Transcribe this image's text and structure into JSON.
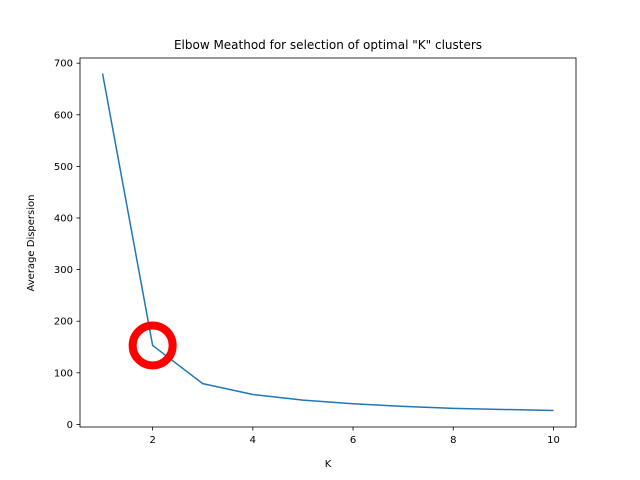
{
  "chart_data": {
    "type": "line",
    "title": "Elbow Meathod for selection of optimal \"K\" clusters",
    "xlabel": "K",
    "ylabel": "Average Dispersion",
    "x": [
      1,
      2,
      3,
      4,
      5,
      6,
      7,
      8,
      9,
      10
    ],
    "series": [
      {
        "values": [
          680,
          153,
          79,
          58,
          47,
          40,
          35,
          31,
          29,
          27
        ]
      }
    ],
    "xlim": [
      0.55,
      10.45
    ],
    "ylim": [
      -5,
      710
    ],
    "xticks": [
      "2",
      "4",
      "6",
      "8",
      "10"
    ],
    "yticks": [
      "0",
      "100",
      "200",
      "300",
      "400",
      "500",
      "600",
      "700"
    ],
    "grid": false,
    "line_color": "#1f77b4",
    "highlight": {
      "x": 2,
      "y": 153,
      "color": "#ff0000"
    }
  }
}
